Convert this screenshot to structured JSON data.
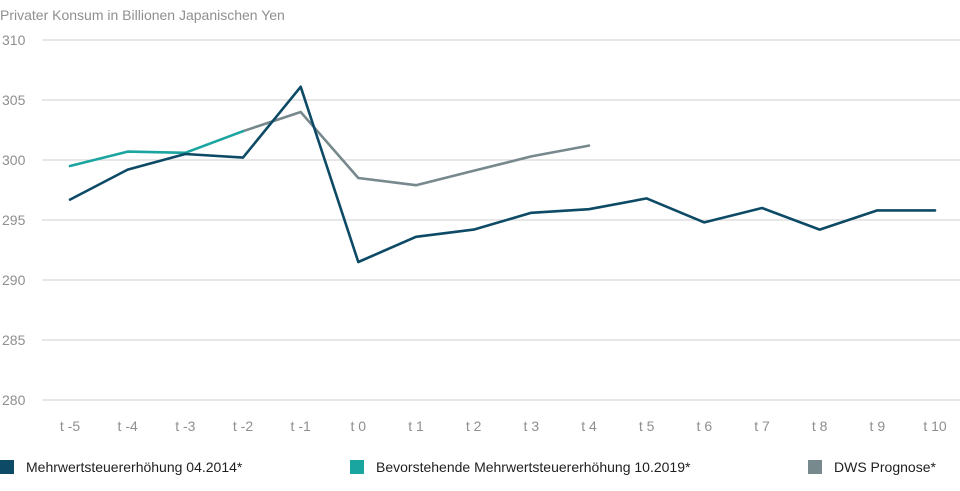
{
  "chart_data": {
    "type": "line",
    "title": "Privater Konsum in Billionen Japanischen Yen",
    "ylim": [
      280,
      310
    ],
    "yticks": [
      280,
      285,
      290,
      295,
      300,
      305,
      310
    ],
    "categories": [
      "t -5",
      "t -4",
      "t -3",
      "t -2",
      "t -1",
      "t 0",
      "t 1",
      "t 2",
      "t 3",
      "t 4",
      "t 5",
      "t 6",
      "t 7",
      "t 8",
      "t 9",
      "t 10"
    ],
    "series": [
      {
        "name": "Mehrwertsteuererhöhung 04.2014*",
        "color": "#0d4a66",
        "values": [
          296.7,
          299.2,
          300.5,
          300.2,
          306.1,
          291.5,
          293.6,
          294.2,
          295.6,
          295.9,
          296.8,
          294.8,
          296.0,
          294.2,
          295.8,
          295.8
        ]
      },
      {
        "name": "Bevorstehende Mehrwertsteuererhöhung 10.2019*",
        "color": "#1aa5a0",
        "values": [
          299.5,
          300.7,
          300.6,
          302.4,
          null,
          null,
          null,
          null,
          null,
          null,
          null,
          null,
          null,
          null,
          null,
          null
        ]
      },
      {
        "name": "DWS Prognose*",
        "color": "#78898d",
        "values": [
          null,
          null,
          null,
          302.4,
          304.0,
          298.5,
          297.9,
          299.1,
          300.3,
          301.2,
          null,
          null,
          null,
          null,
          null,
          null
        ]
      }
    ]
  }
}
